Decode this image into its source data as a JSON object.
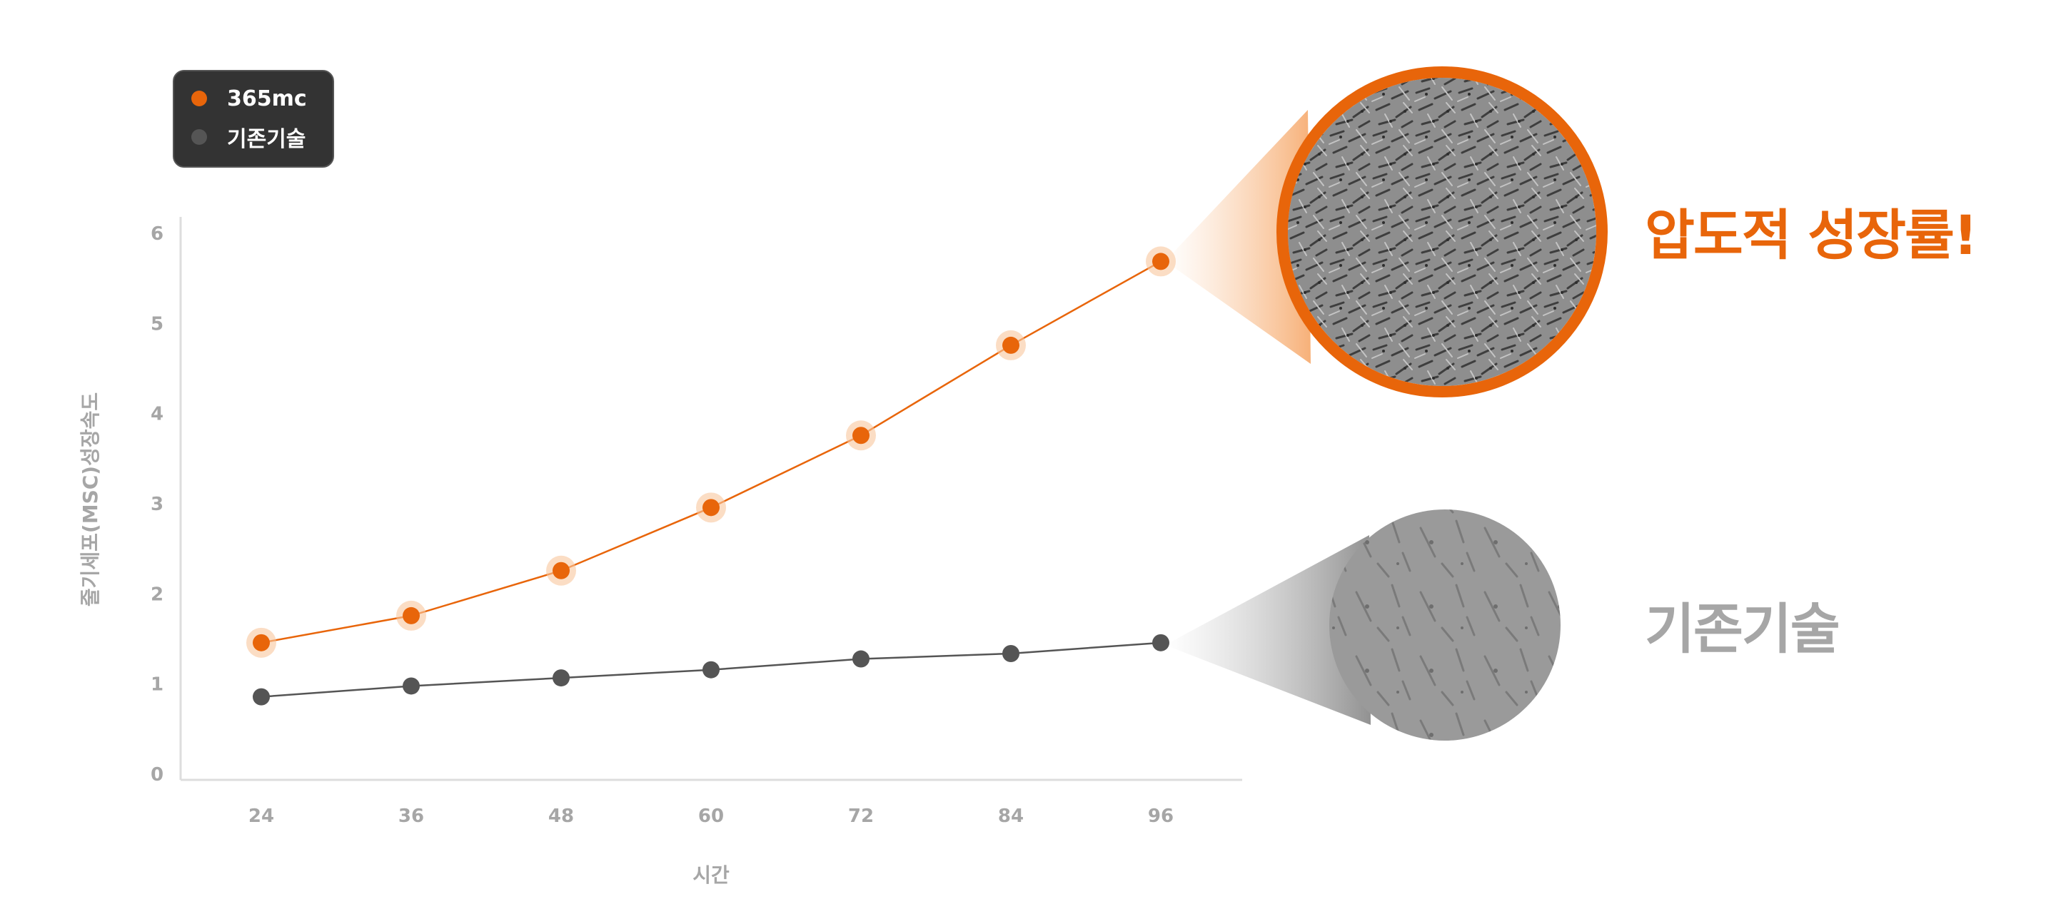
{
  "legend": {
    "items": [
      {
        "label": "365mc",
        "color": "#E8650A"
      },
      {
        "label": "기존기술",
        "color": "#555555"
      }
    ]
  },
  "callouts": {
    "highlight": {
      "text": "압도적 성장률!",
      "color": "#E8650A"
    },
    "baseline": {
      "text": "기존기술",
      "color": "#A6A6A6"
    }
  },
  "colors": {
    "accent": "#E8650A",
    "baseline": "#555555",
    "axis": "#DDDDDD",
    "tick_text": "#A6A6A6"
  },
  "chart_data": {
    "type": "line",
    "x": [
      24,
      36,
      48,
      60,
      72,
      84,
      96
    ],
    "xlabel": "시간",
    "ylabel": "줄기세포(MSC)성장속도",
    "ylim": [
      0,
      6
    ],
    "yticks": [
      0,
      1,
      2,
      3,
      4,
      5,
      6
    ],
    "grid": false,
    "legend_position": "top-left",
    "series": [
      {
        "name": "365mc",
        "color": "#E8650A",
        "values": [
          1.45,
          1.75,
          2.25,
          2.95,
          3.75,
          4.75,
          5.68
        ]
      },
      {
        "name": "기존기술",
        "color": "#555555",
        "values": [
          0.85,
          0.97,
          1.06,
          1.15,
          1.27,
          1.33,
          1.45
        ]
      }
    ]
  }
}
